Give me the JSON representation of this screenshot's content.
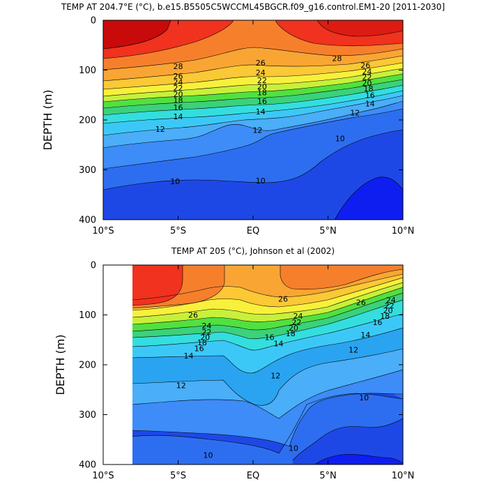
{
  "chart_data": [
    {
      "type": "contour",
      "title": "TEMP AT 204.7°E (°C), b.e15.B5505C5WCCML45BGCR.f09_g16.control.EM1-20 [2011-2030]",
      "ylabel": "DEPTH (m)",
      "xlabel": "",
      "xlim": [
        -10,
        10
      ],
      "ylim": [
        400,
        0
      ],
      "x_ticks": [
        -10,
        -5,
        0,
        5,
        10
      ],
      "x_tick_labels": [
        "10°S",
        "5°S",
        "EQ",
        "5°N",
        "10°N"
      ],
      "y_ticks": [
        0,
        100,
        200,
        300,
        400
      ],
      "y_tick_labels": [
        "0",
        "100",
        "200",
        "300",
        "400"
      ],
      "data_extent_x": [
        -10,
        10
      ],
      "contour_labels": [
        {
          "text": "28",
          "lat": -5,
          "depth": 92
        },
        {
          "text": "26",
          "lat": -5,
          "depth": 112
        },
        {
          "text": "24",
          "lat": -5,
          "depth": 124
        },
        {
          "text": "22",
          "lat": -5,
          "depth": 136
        },
        {
          "text": "20",
          "lat": -5,
          "depth": 148
        },
        {
          "text": "18",
          "lat": -5,
          "depth": 160
        },
        {
          "text": "16",
          "lat": -5,
          "depth": 175
        },
        {
          "text": "14",
          "lat": -5,
          "depth": 193
        },
        {
          "text": "12",
          "lat": -6.2,
          "depth": 218
        },
        {
          "text": "10",
          "lat": -5.2,
          "depth": 323
        },
        {
          "text": "26",
          "lat": 0.5,
          "depth": 85
        },
        {
          "text": "24",
          "lat": 0.5,
          "depth": 105
        },
        {
          "text": "22",
          "lat": 0.6,
          "depth": 120
        },
        {
          "text": "20",
          "lat": 0.6,
          "depth": 133
        },
        {
          "text": "18",
          "lat": 0.6,
          "depth": 145
        },
        {
          "text": "16",
          "lat": 0.6,
          "depth": 162
        },
        {
          "text": "14",
          "lat": 0.5,
          "depth": 183
        },
        {
          "text": "12",
          "lat": 0.3,
          "depth": 220
        },
        {
          "text": "10",
          "lat": 0.5,
          "depth": 322
        },
        {
          "text": "28",
          "lat": 5.6,
          "depth": 76
        },
        {
          "text": "26",
          "lat": 7.5,
          "depth": 90
        },
        {
          "text": "24",
          "lat": 7.6,
          "depth": 103
        },
        {
          "text": "22",
          "lat": 7.6,
          "depth": 114
        },
        {
          "text": "20",
          "lat": 7.6,
          "depth": 126
        },
        {
          "text": "18",
          "lat": 7.7,
          "depth": 137
        },
        {
          "text": "16",
          "lat": 7.8,
          "depth": 150
        },
        {
          "text": "14",
          "lat": 7.8,
          "depth": 167
        },
        {
          "text": "12",
          "lat": 6.8,
          "depth": 185
        },
        {
          "text": "10",
          "lat": 5.8,
          "depth": 237
        }
      ]
    },
    {
      "type": "contour",
      "title": "TEMP AT 205 (°C), Johnson et al (2002)",
      "ylabel": "DEPTH (m)",
      "xlabel": "",
      "xlim": [
        -10,
        10
      ],
      "ylim": [
        400,
        0
      ],
      "x_ticks": [
        -10,
        -5,
        0,
        5,
        10
      ],
      "x_tick_labels": [
        "10°S",
        "5°S",
        "EQ",
        "5°N",
        "10°N"
      ],
      "y_ticks": [
        0,
        100,
        200,
        300,
        400
      ],
      "y_tick_labels": [
        "0",
        "100",
        "200",
        "300",
        "400"
      ],
      "data_extent_x": [
        -8,
        10
      ],
      "contour_labels": [
        {
          "text": "26",
          "lat": -4,
          "depth": 100
        },
        {
          "text": "24",
          "lat": -3.1,
          "depth": 122
        },
        {
          "text": "22",
          "lat": -3.1,
          "depth": 134
        },
        {
          "text": "20",
          "lat": -3.2,
          "depth": 145
        },
        {
          "text": "18",
          "lat": -3.4,
          "depth": 155
        },
        {
          "text": "16",
          "lat": -3.6,
          "depth": 167
        },
        {
          "text": "14",
          "lat": -4.3,
          "depth": 182
        },
        {
          "text": "12",
          "lat": -4.8,
          "depth": 241
        },
        {
          "text": "12",
          "lat": 1.5,
          "depth": 222
        },
        {
          "text": "26",
          "lat": 2,
          "depth": 68
        },
        {
          "text": "24",
          "lat": 3,
          "depth": 102
        },
        {
          "text": "22",
          "lat": 2.9,
          "depth": 115
        },
        {
          "text": "20",
          "lat": 2.7,
          "depth": 126
        },
        {
          "text": "18",
          "lat": 2.5,
          "depth": 137
        },
        {
          "text": "16",
          "lat": 1.1,
          "depth": 145
        },
        {
          "text": "14",
          "lat": 1.7,
          "depth": 157
        },
        {
          "text": "26",
          "lat": 7.2,
          "depth": 75
        },
        {
          "text": "24",
          "lat": 9.2,
          "depth": 70
        },
        {
          "text": "22",
          "lat": 9.1,
          "depth": 81
        },
        {
          "text": "20",
          "lat": 9,
          "depth": 91
        },
        {
          "text": "18",
          "lat": 8.8,
          "depth": 102
        },
        {
          "text": "16",
          "lat": 8.3,
          "depth": 115
        },
        {
          "text": "14",
          "lat": 7.5,
          "depth": 140
        },
        {
          "text": "12",
          "lat": 6.7,
          "depth": 170
        },
        {
          "text": "10",
          "lat": 7.4,
          "depth": 266
        },
        {
          "text": "10",
          "lat": 2.7,
          "depth": 367
        },
        {
          "text": "10",
          "lat": -3,
          "depth": 381
        }
      ]
    }
  ]
}
